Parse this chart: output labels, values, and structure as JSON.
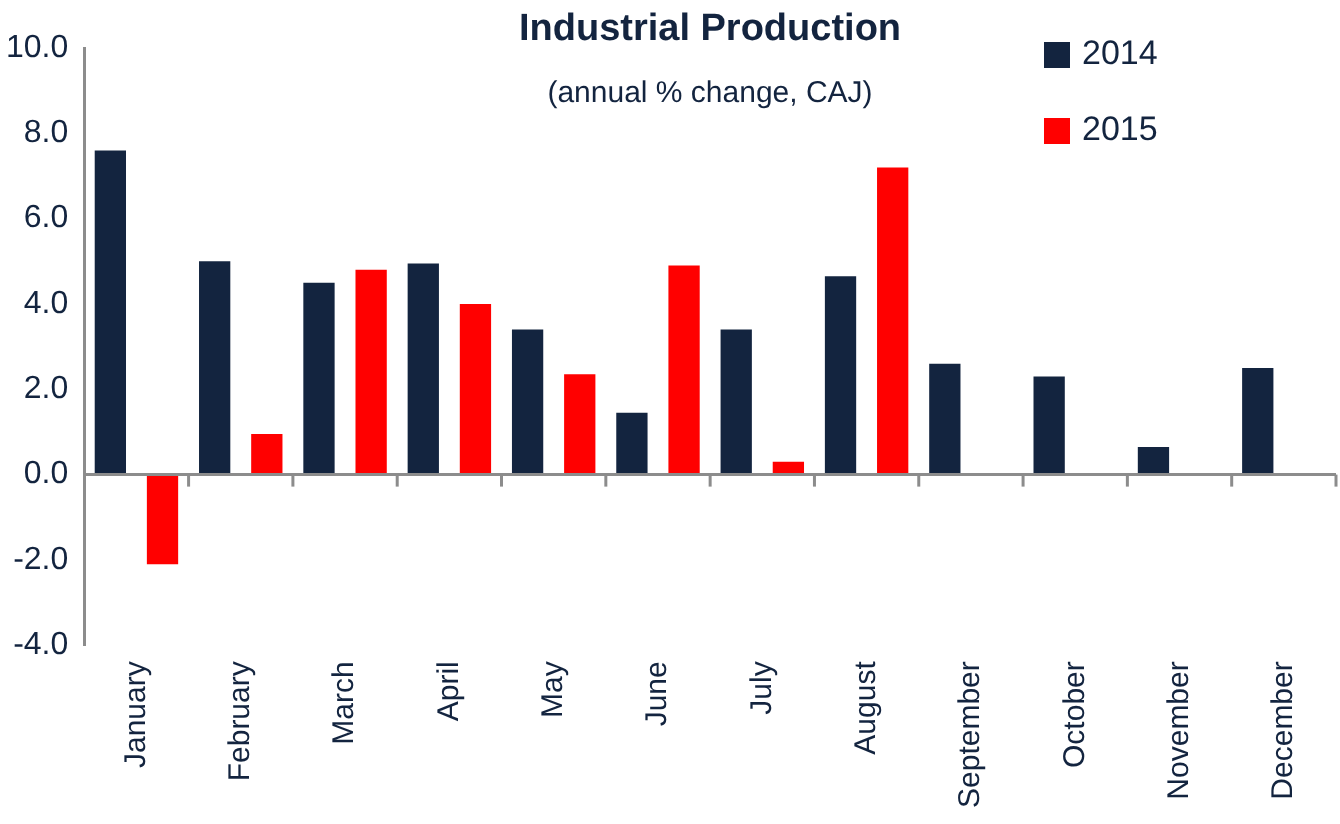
{
  "chart_data": {
    "type": "bar",
    "title": "Industrial Production",
    "subtitle": "(annual % change, CAJ)",
    "categories": [
      "January",
      "February",
      "March",
      "April",
      "May",
      "June",
      "July",
      "August",
      "September",
      "October",
      "November",
      "December"
    ],
    "series": [
      {
        "name": "2014",
        "color": "#13243f",
        "values": [
          7.6,
          5.0,
          4.5,
          4.95,
          3.4,
          1.45,
          3.4,
          4.65,
          2.6,
          2.3,
          0.65,
          2.5
        ]
      },
      {
        "name": "2015",
        "color": "#ff0000",
        "values": [
          -2.1,
          0.95,
          4.8,
          4.0,
          2.35,
          4.9,
          0.3,
          7.2,
          null,
          null,
          null,
          null
        ]
      }
    ],
    "ylim": [
      -4,
      10
    ],
    "yticks": [
      {
        "value": -4,
        "label": "-4.0"
      },
      {
        "value": -2,
        "label": "-2.0"
      },
      {
        "value": 0,
        "label": "0.0"
      },
      {
        "value": 2,
        "label": "2.0"
      },
      {
        "value": 4,
        "label": "4.0"
      },
      {
        "value": 6,
        "label": "6.0"
      },
      {
        "value": 8,
        "label": "8.0"
      },
      {
        "value": 10,
        "label": "10.0"
      }
    ],
    "ref_lines": [
      {
        "axis": "y",
        "value": 0,
        "color": "#8c8c8c"
      }
    ],
    "grid": false,
    "legend": "top right"
  }
}
